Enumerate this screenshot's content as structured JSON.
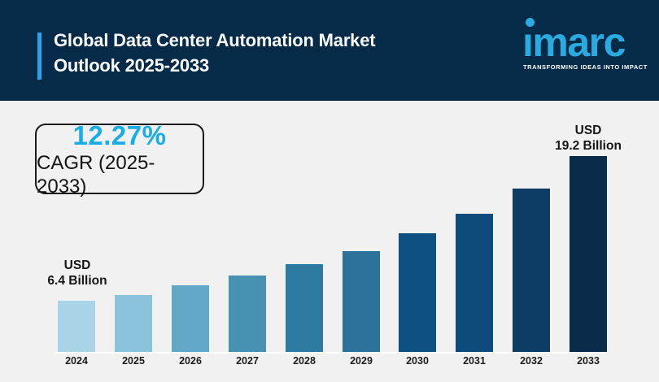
{
  "header": {
    "title_line1": "Global Data Center Automation Market",
    "title_line2": "Outlook 2025-2033",
    "background_color": "#062b48",
    "accent_color": "#2aa2e8",
    "logo": {
      "name": "imarc",
      "wordmark": "ımarc",
      "tagline": "TRANSFORMING IDEAS INTO IMPACT",
      "color": "#29abe2"
    }
  },
  "cagr": {
    "value": "12.27%",
    "label": "CAGR (2025-2033)",
    "value_color": "#18ace8"
  },
  "annotations": {
    "start": {
      "line1": "USD",
      "line2": "6.4 Billion"
    },
    "end": {
      "line1": "USD",
      "line2": "19.2 Billion"
    }
  },
  "chart_data": {
    "type": "bar",
    "title": "Global Data Center Automation Market Outlook 2025-2033",
    "unit": "USD Billion",
    "categories": [
      "2024",
      "2025",
      "2026",
      "2027",
      "2028",
      "2029",
      "2030",
      "2031",
      "2032",
      "2033"
    ],
    "values": [
      6.4,
      6.9,
      7.8,
      8.6,
      9.6,
      10.8,
      12.4,
      14.1,
      16.3,
      19.2
    ],
    "labeled_points": {
      "2024": 6.4,
      "2033": 19.2
    },
    "cagr_2025_2033_percent": 12.27,
    "bar_colors": [
      "#a9d4e7",
      "#8cc3dc",
      "#63a7c6",
      "#4792b2",
      "#2d7ba1",
      "#2d7298",
      "#0f5083",
      "#0e4a7b",
      "#0d3d64",
      "#0a2b49"
    ],
    "xlabel": "",
    "ylabel": "",
    "ylim": [
      0,
      20
    ],
    "grid": false,
    "legend": false,
    "axis_line_color": "#ffffff",
    "background_color": "#f1f1f2"
  }
}
